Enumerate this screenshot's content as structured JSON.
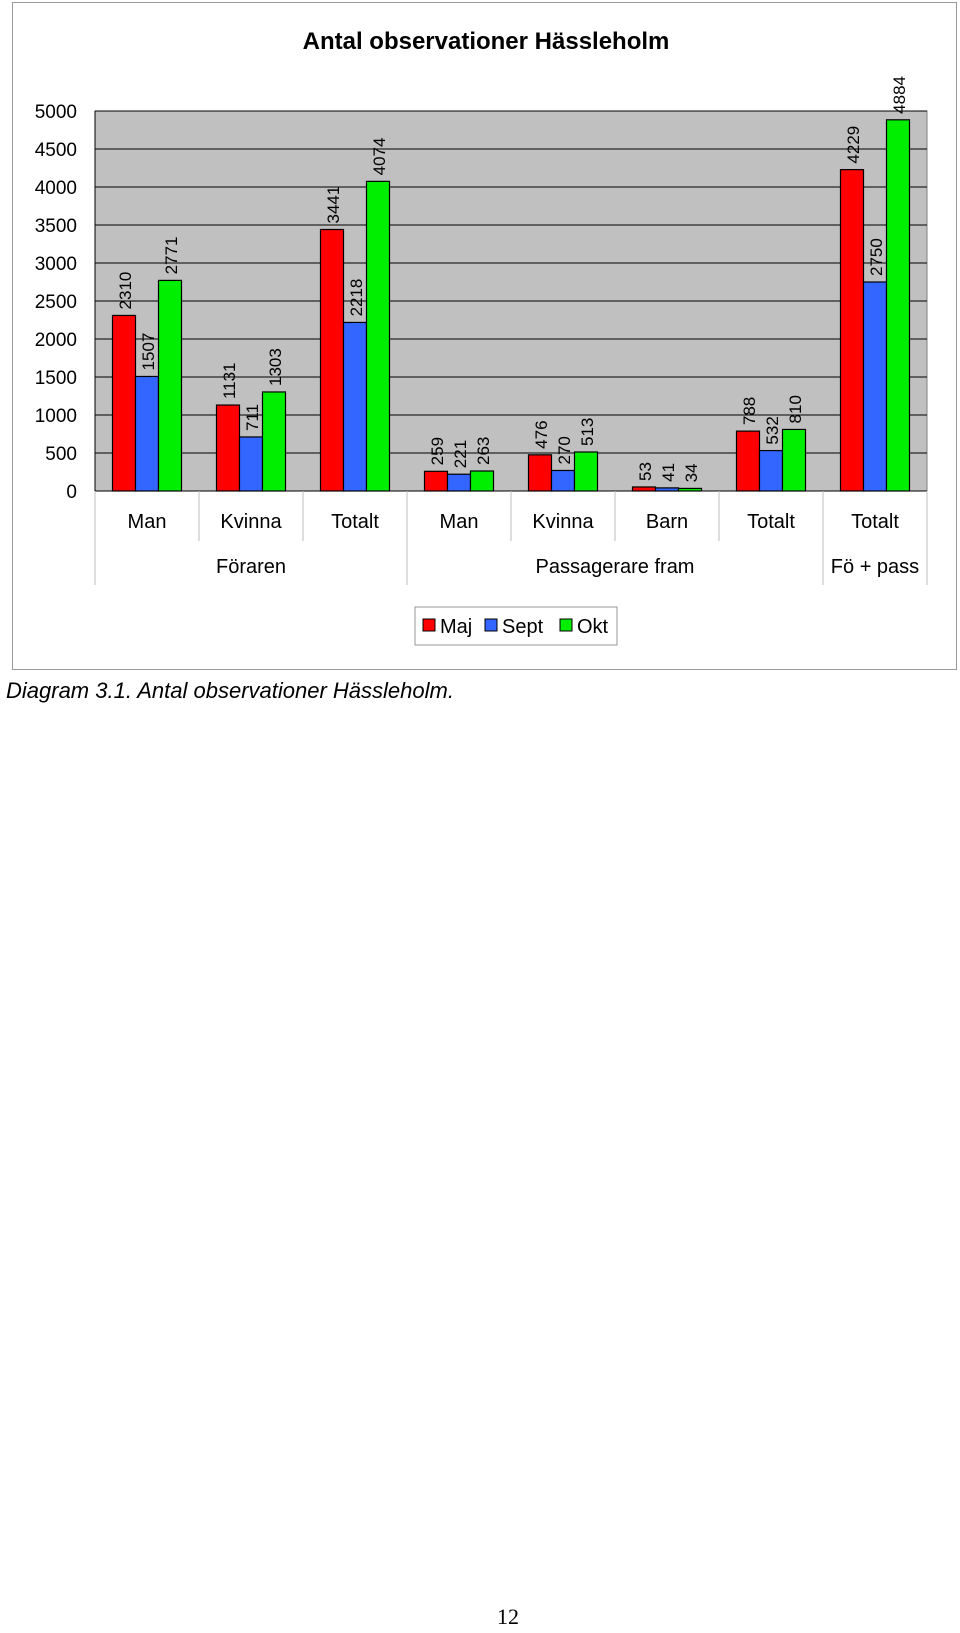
{
  "chart_data": {
    "type": "bar",
    "title": "Antal observationer Hässleholm",
    "xlabel": "",
    "ylabel": "",
    "ylim": [
      0,
      5000
    ],
    "yticks": [
      0,
      500,
      1000,
      1500,
      2000,
      2500,
      3000,
      3500,
      4000,
      4500,
      5000
    ],
    "grid": true,
    "legend_position": "bottom",
    "categories": [
      "Man",
      "Kvinna",
      "Totalt",
      "Man",
      "Kvinna",
      "Barn",
      "Totalt",
      "Totalt"
    ],
    "groups": [
      {
        "label": "Föraren",
        "categories": [
          "Man",
          "Kvinna",
          "Totalt"
        ]
      },
      {
        "label": "Passagerare fram",
        "categories": [
          "Man",
          "Kvinna",
          "Barn",
          "Totalt"
        ]
      },
      {
        "label": "Fö + pass",
        "categories": [
          "Totalt"
        ]
      }
    ],
    "series": [
      {
        "name": "Maj",
        "color": "#ff0000",
        "values": [
          2310,
          1131,
          3441,
          259,
          476,
          53,
          788,
          4229
        ]
      },
      {
        "name": "Sept",
        "color": "#3366ff",
        "values": [
          1507,
          711,
          2218,
          221,
          270,
          41,
          532,
          2750
        ]
      },
      {
        "name": "Okt",
        "color": "#00ee00",
        "values": [
          2771,
          1303,
          4074,
          263,
          513,
          34,
          810,
          4884
        ]
      }
    ],
    "plot_background": "#c0c0c0"
  },
  "caption": "Diagram 3.1. Antal observationer Hässleholm.",
  "page_number": "12"
}
